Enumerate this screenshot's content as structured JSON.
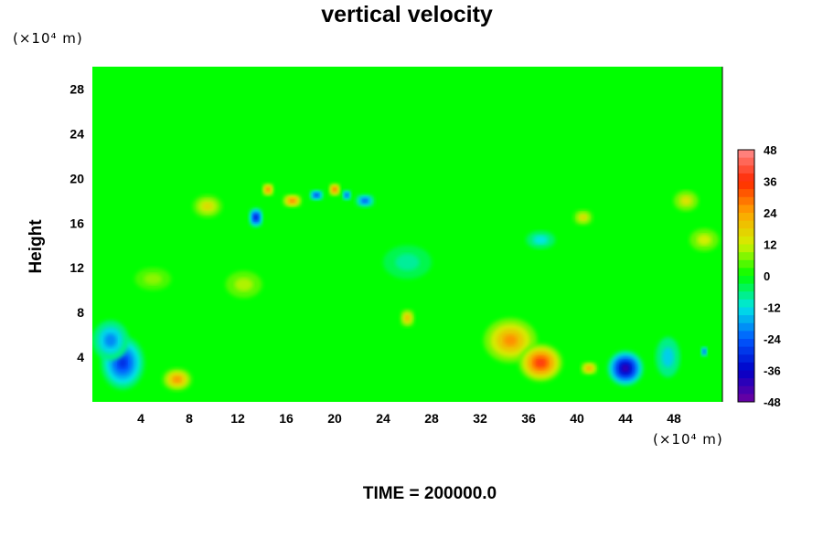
{
  "chart_data": {
    "type": "heatmap",
    "title": "vertical velocity",
    "ylabel": "Height",
    "x_unit": "(×10⁴ m)",
    "y_unit": "(×10⁴ m)",
    "xlim": [
      0,
      52
    ],
    "ylim": [
      0,
      30
    ],
    "x_ticks": [
      4,
      8,
      12,
      16,
      20,
      24,
      28,
      32,
      36,
      40,
      44,
      48
    ],
    "y_ticks": [
      4,
      8,
      12,
      16,
      20,
      24,
      28
    ],
    "colorbar": {
      "levels": [
        48,
        36,
        24,
        12,
        0,
        -12,
        -24,
        -36,
        -48
      ],
      "min": -48,
      "max": 48
    },
    "features": [
      {
        "x": 2.5,
        "y": 3.5,
        "value": -30,
        "sx": 1.8,
        "sy": 2.4
      },
      {
        "x": 1.5,
        "y": 5.5,
        "value": -20,
        "sx": 1.5,
        "sy": 1.8
      },
      {
        "x": 7.0,
        "y": 2.0,
        "value": 26,
        "sx": 1.2,
        "sy": 1.0
      },
      {
        "x": 26.0,
        "y": 7.5,
        "value": 22,
        "sx": 0.6,
        "sy": 0.8
      },
      {
        "x": 34.5,
        "y": 5.5,
        "value": 26,
        "sx": 2.2,
        "sy": 2.0
      },
      {
        "x": 37.0,
        "y": 3.5,
        "value": 38,
        "sx": 1.8,
        "sy": 1.7
      },
      {
        "x": 41.0,
        "y": 3.0,
        "value": 24,
        "sx": 0.7,
        "sy": 0.6
      },
      {
        "x": 44.0,
        "y": 3.0,
        "value": -44,
        "sx": 1.5,
        "sy": 1.6
      },
      {
        "x": 47.5,
        "y": 4.0,
        "value": -14,
        "sx": 1.0,
        "sy": 1.8
      },
      {
        "x": 13.5,
        "y": 16.5,
        "value": -36,
        "sx": 0.6,
        "sy": 0.9
      },
      {
        "x": 14.5,
        "y": 19.0,
        "value": 30,
        "sx": 0.5,
        "sy": 0.6
      },
      {
        "x": 16.5,
        "y": 18.0,
        "value": 30,
        "sx": 0.8,
        "sy": 0.6
      },
      {
        "x": 18.5,
        "y": 18.5,
        "value": -30,
        "sx": 0.6,
        "sy": 0.5
      },
      {
        "x": 20.0,
        "y": 19.0,
        "value": 32,
        "sx": 0.5,
        "sy": 0.6
      },
      {
        "x": 21.0,
        "y": 18.5,
        "value": -28,
        "sx": 0.4,
        "sy": 0.5
      },
      {
        "x": 22.5,
        "y": 18.0,
        "value": -26,
        "sx": 0.8,
        "sy": 0.6
      },
      {
        "x": 9.5,
        "y": 17.5,
        "value": 16,
        "sx": 1.2,
        "sy": 1.0
      },
      {
        "x": 37.0,
        "y": 14.5,
        "value": -12,
        "sx": 1.2,
        "sy": 0.8
      },
      {
        "x": 40.5,
        "y": 16.5,
        "value": 16,
        "sx": 0.8,
        "sy": 0.7
      },
      {
        "x": 50.5,
        "y": 14.5,
        "value": 12,
        "sx": 1.2,
        "sy": 1.0
      },
      {
        "x": 49.0,
        "y": 18.0,
        "value": 14,
        "sx": 1.0,
        "sy": 0.9
      },
      {
        "x": 12.5,
        "y": 10.5,
        "value": 10,
        "sx": 1.5,
        "sy": 1.2
      },
      {
        "x": 5.0,
        "y": 11.0,
        "value": 8,
        "sx": 1.5,
        "sy": 1.0
      },
      {
        "x": 26.0,
        "y": 12.5,
        "value": -8,
        "sx": 2.0,
        "sy": 1.5
      },
      {
        "x": 50.5,
        "y": 4.5,
        "value": -28,
        "sx": 0.3,
        "sy": 0.5
      }
    ]
  },
  "time_label": "TIME = 200000.0"
}
